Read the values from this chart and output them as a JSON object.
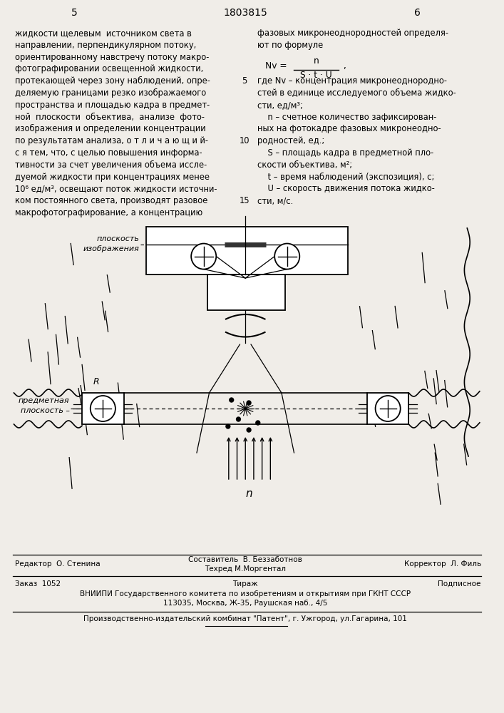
{
  "bg_color": "#f0ede8",
  "page_number_left": "5",
  "page_number_center": "1803815",
  "page_number_right": "6",
  "left_col_text": [
    "жидкости щелевым  источником света в",
    "направлении, перпендикулярном потоку,",
    "ориентированному навстречу потоку макро-",
    "фотографировании освещенной жидкости,",
    "протекающей через зону наблюдений, опре-",
    "деляемую границами резко изображаемого",
    "пространства и площадью кадра в предмет-",
    "ной  плоскости  объектива,  анализе  фото-",
    "изображения и определении концентрации",
    "по результатам анализа, о т л и ч а ю щ и й-",
    "с я тем, что, с целью повышения информа-",
    "тивности за счет увеличения объема иссле-",
    "дуемой жидкости при концентрациях менее",
    "10⁶ ед/м³, освещают поток жидкости источни-",
    "ком постоянного света, производят разовое",
    "макрофотографирование, а концентрацию"
  ],
  "right_col_text": [
    "фазовых микронеоднородностей определя-",
    "ют по формуле",
    "",
    "",
    "где Nv – концентрация микронеоднородно-",
    "стей в единице исследуемого объема жидко-",
    "сти, ед/м³;",
    "    n – счетное количество зафиксирован-",
    "ных на фотокадре фазовых микронеодно-",
    "родностей, ед.;",
    "    S – площадь кадра в предметной пло-",
    "скости объектива, м²;",
    "    t – время наблюдений (экспозиция), с;",
    "    U – скорость движения потока жидко-",
    "сти, м/с."
  ],
  "editor_line": "Редактор  О. Стенина",
  "composer_line": "Составитель  В. Беззаботнов",
  "techred_line": "Техред М.Моргентал",
  "corrector_line": "Корректор  Л. Филь",
  "order_line": "Заказ  1052",
  "tirazh_line": "Тираж",
  "podpisnoe_line": "Подписное",
  "vniipи_line": "ВНИИПИ Государственного комитета по изобретениям и открытиям при ГКНТ СССР",
  "address_line": "113035, Москва, Ж-35, Раушская наб., 4/5",
  "patent_line": "Производственно-издательский комбинат \"Патент\", г. Ужгород, ул.Гагарина, 101"
}
